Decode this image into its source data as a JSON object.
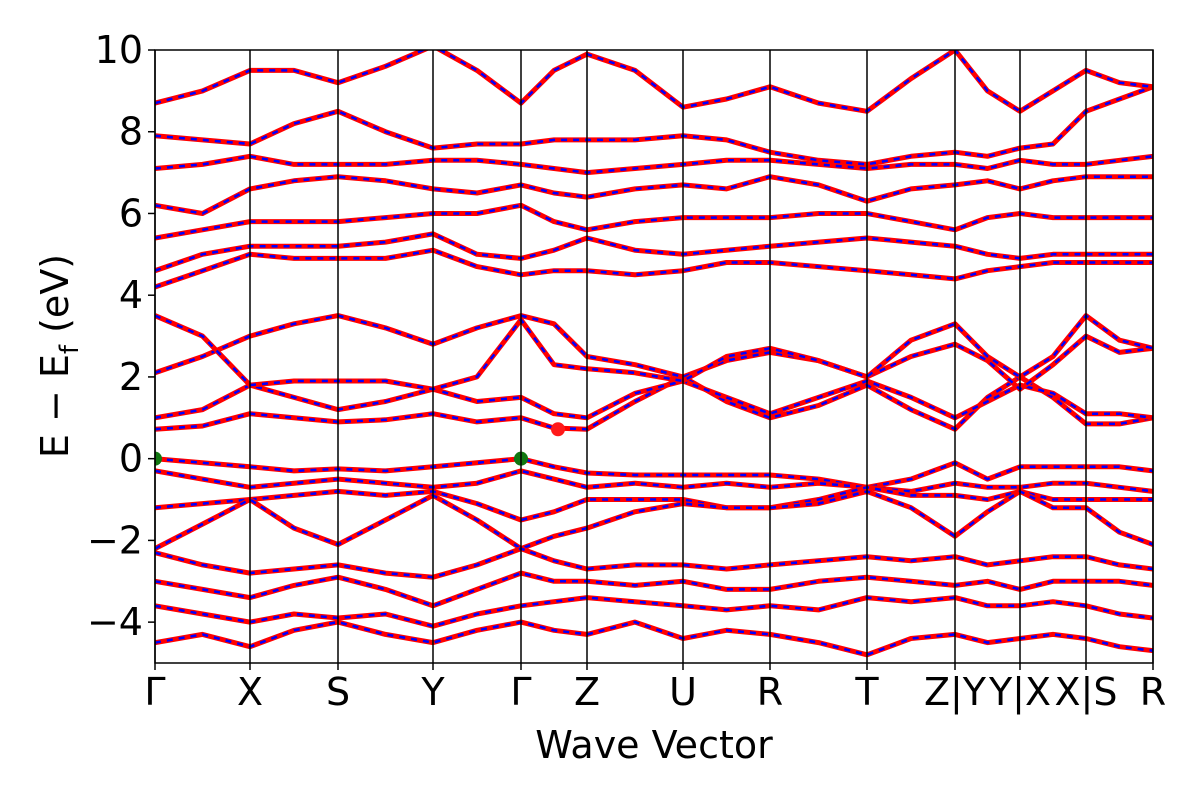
{
  "chart_data": {
    "type": "line",
    "xlabel": "Wave Vector",
    "ylabel": "E − E",
    "ylabel_sub": "f",
    "ylabel_suffix": " (eV)",
    "xlim": [
      0,
      9.98
    ],
    "xticks": [
      {
        "value": 0,
        "label": "Γ"
      },
      {
        "value": 0.95,
        "label": "X"
      },
      {
        "value": 1.83,
        "label": "S"
      },
      {
        "value": 2.78,
        "label": "Y"
      },
      {
        "value": 3.66,
        "label": "Γ"
      },
      {
        "value": 4.32,
        "label": "Z"
      },
      {
        "value": 5.28,
        "label": "U"
      },
      {
        "value": 6.15,
        "label": "R"
      },
      {
        "value": 7.12,
        "label": "T"
      },
      {
        "value": 8.0,
        "label": "Z|Y"
      },
      {
        "value": 8.65,
        "label": "Y|X"
      },
      {
        "value": 9.31,
        "label": "X|S"
      },
      {
        "value": 9.98,
        "label": "R"
      }
    ],
    "ylim": [
      -5,
      10
    ],
    "yticks": [
      {
        "value": -4,
        "label": "−4"
      },
      {
        "value": -2,
        "label": "−2"
      },
      0,
      2,
      4,
      6,
      8,
      10
    ],
    "color": "#ff0000",
    "dash_color": "#0000ff",
    "x": [
      0,
      0.475,
      0.95,
      1.39,
      1.83,
      2.305,
      2.78,
      3.22,
      3.66,
      3.99,
      4.32,
      4.8,
      5.28,
      5.715,
      6.15,
      6.635,
      7.12,
      7.56,
      8.0,
      8.325,
      8.65,
      8.98,
      9.31,
      9.645,
      9.98
    ],
    "bands": [
      [
        0,
        -0.1,
        -0.2,
        -0.3,
        -0.25,
        -0.3,
        -0.2,
        -0.1,
        0,
        -0.2,
        -0.35,
        -0.4,
        -0.4,
        -0.4,
        -0.4,
        -0.5,
        -0.7,
        -0.5,
        -0.1,
        -0.5,
        -0.2,
        -0.2,
        -0.2,
        -0.2,
        -0.3
      ],
      [
        -0.3,
        -0.5,
        -0.7,
        -0.6,
        -0.5,
        -0.6,
        -0.7,
        -0.6,
        -0.3,
        -0.5,
        -0.7,
        -0.6,
        -0.7,
        -0.6,
        -0.7,
        -0.6,
        -0.7,
        -0.8,
        -0.6,
        -0.7,
        -0.7,
        -0.6,
        -0.6,
        -0.7,
        -0.8
      ],
      [
        -1.2,
        -1.1,
        -1.0,
        -0.9,
        -0.8,
        -0.9,
        -0.8,
        -1.1,
        -1.5,
        -1.3,
        -1.0,
        -1.0,
        -1.0,
        -1.2,
        -1.2,
        -1.0,
        -0.7,
        -0.9,
        -0.9,
        -1.0,
        -0.8,
        -1.0,
        -1.0,
        -1.0,
        -1.0
      ],
      [
        -2.2,
        -1.6,
        -1.0,
        -1.7,
        -2.1,
        -1.5,
        -0.9,
        -1.5,
        -2.2,
        -1.9,
        -1.7,
        -1.3,
        -1.1,
        -1.2,
        -1.2,
        -1.1,
        -0.8,
        -1.2,
        -1.9,
        -1.3,
        -0.8,
        -1.2,
        -1.2,
        -1.8,
        -2.1
      ],
      [
        -2.3,
        -2.6,
        -2.8,
        -2.7,
        -2.6,
        -2.8,
        -2.9,
        -2.6,
        -2.2,
        -2.5,
        -2.7,
        -2.6,
        -2.6,
        -2.7,
        -2.6,
        -2.5,
        -2.4,
        -2.5,
        -2.4,
        -2.6,
        -2.5,
        -2.4,
        -2.4,
        -2.6,
        -2.7
      ],
      [
        -3.0,
        -3.2,
        -3.4,
        -3.1,
        -2.9,
        -3.2,
        -3.6,
        -3.2,
        -2.8,
        -3.0,
        -3.0,
        -3.1,
        -3.0,
        -3.2,
        -3.2,
        -3.0,
        -2.9,
        -3.0,
        -3.1,
        -3.0,
        -3.2,
        -3.0,
        -3.0,
        -3.0,
        -3.1
      ],
      [
        -3.6,
        -3.8,
        -4.0,
        -3.8,
        -3.9,
        -3.8,
        -4.1,
        -3.8,
        -3.6,
        -3.5,
        -3.4,
        -3.5,
        -3.6,
        -3.7,
        -3.6,
        -3.7,
        -3.4,
        -3.5,
        -3.4,
        -3.6,
        -3.6,
        -3.5,
        -3.6,
        -3.8,
        -3.9
      ],
      [
        -4.5,
        -4.3,
        -4.6,
        -4.2,
        -4.0,
        -4.3,
        -4.5,
        -4.2,
        -4.0,
        -4.2,
        -4.3,
        -4.0,
        -4.4,
        -4.2,
        -4.3,
        -4.5,
        -4.8,
        -4.4,
        -4.3,
        -4.5,
        -4.4,
        -4.3,
        -4.4,
        -4.6,
        -4.7
      ],
      [
        0.72,
        0.8,
        1.1,
        1.0,
        0.9,
        0.95,
        1.1,
        0.9,
        1.0,
        0.75,
        0.72,
        1.4,
        2.0,
        1.4,
        1.0,
        1.3,
        1.8,
        1.2,
        0.72,
        1.5,
        2.0,
        1.5,
        0.85,
        0.85,
        1.0
      ],
      [
        1.0,
        1.2,
        1.8,
        1.5,
        1.2,
        1.4,
        1.7,
        1.4,
        1.5,
        1.1,
        1.0,
        1.6,
        1.9,
        1.5,
        1.1,
        1.5,
        1.9,
        1.5,
        1.0,
        1.4,
        1.8,
        1.6,
        1.1,
        1.1,
        1.0
      ],
      [
        2.1,
        2.5,
        3.0,
        3.3,
        3.5,
        3.2,
        2.8,
        3.2,
        3.5,
        3.3,
        2.5,
        2.3,
        2.0,
        2.4,
        2.6,
        2.4,
        2.0,
        2.5,
        2.8,
        2.4,
        1.7,
        2.3,
        3.0,
        2.6,
        2.7
      ],
      [
        3.5,
        3.0,
        1.8,
        1.9,
        1.9,
        1.9,
        1.7,
        2.0,
        3.4,
        2.3,
        2.2,
        2.1,
        1.9,
        2.5,
        2.7,
        2.4,
        2.0,
        2.9,
        3.3,
        2.5,
        2.0,
        2.5,
        3.5,
        2.9,
        2.7
      ],
      [
        4.2,
        4.6,
        5.0,
        4.9,
        4.9,
        4.9,
        5.1,
        4.7,
        4.5,
        4.6,
        4.6,
        4.5,
        4.6,
        4.8,
        4.8,
        4.7,
        4.6,
        4.5,
        4.4,
        4.6,
        4.7,
        4.8,
        4.8,
        4.8,
        4.8
      ],
      [
        4.6,
        5.0,
        5.2,
        5.2,
        5.2,
        5.3,
        5.5,
        5.0,
        4.9,
        5.1,
        5.4,
        5.1,
        5.0,
        5.1,
        5.2,
        5.3,
        5.4,
        5.3,
        5.2,
        5.0,
        4.9,
        5.0,
        5.0,
        5.0,
        5.0
      ],
      [
        5.4,
        5.6,
        5.8,
        5.8,
        5.8,
        5.9,
        6.0,
        6.0,
        6.2,
        5.8,
        5.6,
        5.8,
        5.9,
        5.9,
        5.9,
        6.0,
        6.0,
        5.8,
        5.6,
        5.9,
        6.0,
        5.9,
        5.9,
        5.9,
        5.9
      ],
      [
        6.2,
        6.0,
        6.6,
        6.8,
        6.9,
        6.8,
        6.6,
        6.5,
        6.7,
        6.5,
        6.4,
        6.6,
        6.7,
        6.6,
        6.9,
        6.7,
        6.3,
        6.6,
        6.7,
        6.8,
        6.6,
        6.8,
        6.9,
        6.9,
        6.9
      ],
      [
        7.1,
        7.2,
        7.4,
        7.2,
        7.2,
        7.2,
        7.3,
        7.3,
        7.2,
        7.1,
        7.0,
        7.1,
        7.2,
        7.3,
        7.3,
        7.2,
        7.1,
        7.2,
        7.2,
        7.1,
        7.3,
        7.2,
        7.2,
        7.3,
        7.4
      ],
      [
        7.9,
        7.8,
        7.7,
        8.2,
        8.5,
        8.0,
        7.6,
        7.7,
        7.7,
        7.8,
        7.8,
        7.8,
        7.9,
        7.8,
        7.5,
        7.3,
        7.2,
        7.4,
        7.5,
        7.4,
        7.6,
        7.7,
        8.5,
        8.8,
        9.1
      ],
      [
        8.7,
        9.0,
        9.5,
        9.5,
        9.2,
        9.6,
        10.1,
        9.5,
        8.7,
        9.5,
        9.9,
        9.5,
        8.6,
        8.8,
        9.1,
        8.7,
        8.5,
        9.3,
        10,
        9.0,
        8.5,
        9.0,
        9.5,
        9.2,
        9.1
      ]
    ],
    "markers": [
      {
        "x": 0,
        "y": 0,
        "color": "#117711"
      },
      {
        "x": 3.66,
        "y": 0,
        "color": "#117711"
      },
      {
        "x": 4.03,
        "y": 0.72,
        "color": "#ff1a1a"
      }
    ]
  }
}
